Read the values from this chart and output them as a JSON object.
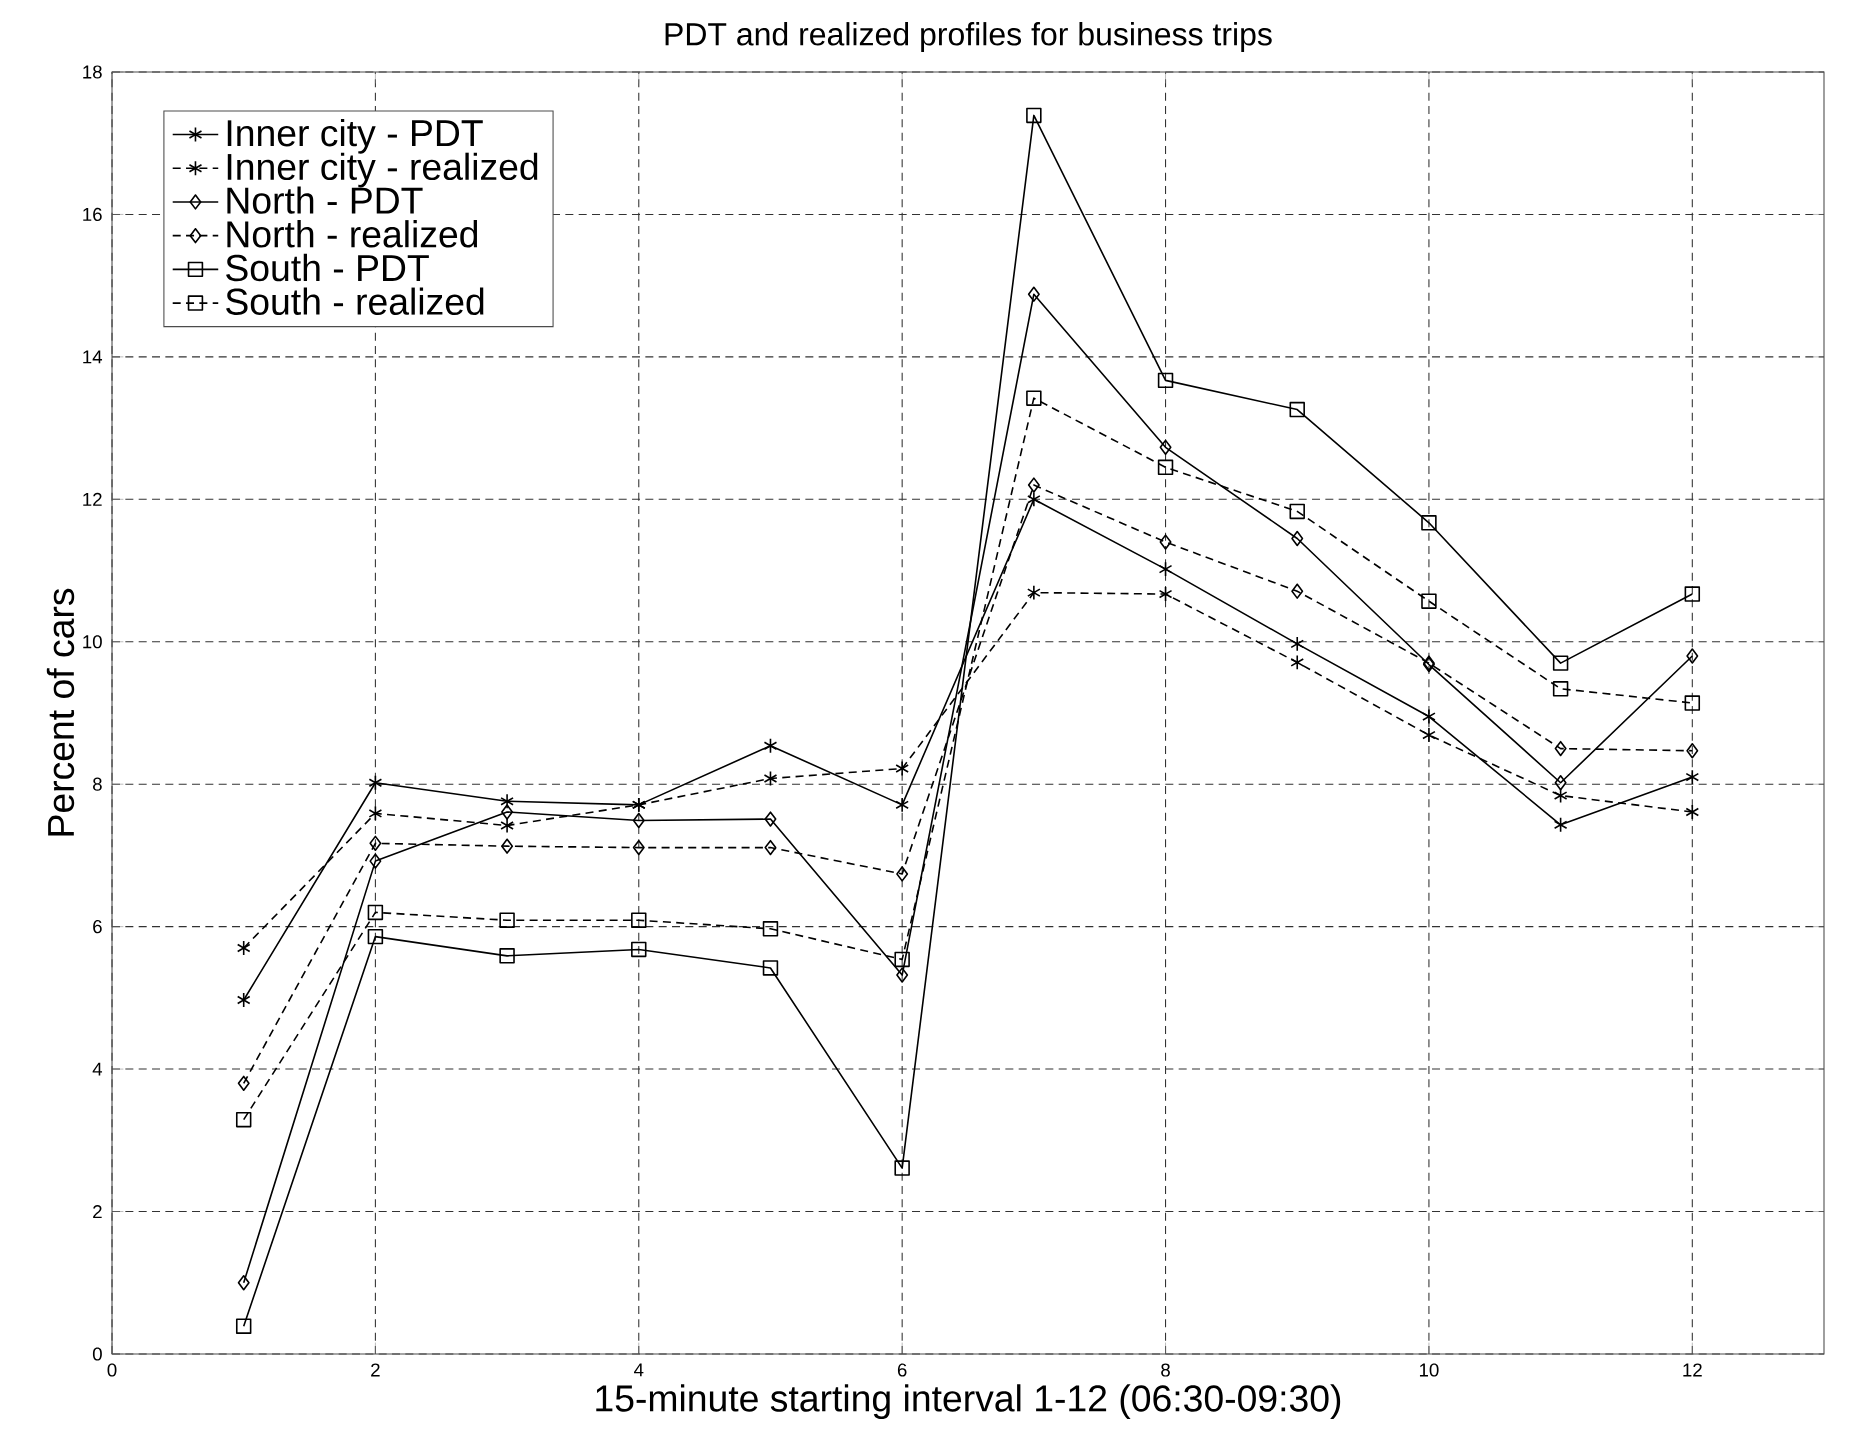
{
  "chart_data": {
    "type": "line",
    "title": "PDT and realized profiles for business trips",
    "xlabel": "15-minute starting interval 1-12 (06:30-09:30)",
    "ylabel": "Percent of cars",
    "x": [
      1,
      2,
      3,
      4,
      5,
      6,
      7,
      8,
      9,
      10,
      11,
      12
    ],
    "xlim": [
      0,
      13
    ],
    "xticks": [
      0,
      2,
      4,
      6,
      8,
      10,
      12
    ],
    "ylim": [
      0,
      18
    ],
    "yticks": [
      0,
      2,
      4,
      6,
      8,
      10,
      12,
      14,
      16,
      18
    ],
    "grid": true,
    "legend": "top left",
    "series": [
      {
        "name": "Inner city - PDT",
        "color": "#000000",
        "marker": "cross",
        "line_style": "solid",
        "values": [
          4.97,
          8.02,
          7.76,
          7.71,
          8.54,
          7.71,
          12.0,
          11.02,
          9.97,
          8.95,
          7.43,
          8.1
        ]
      },
      {
        "name": "Inner city - realized",
        "color": "#000000",
        "marker": "cross",
        "line_style": "dotted",
        "values": [
          5.7,
          7.59,
          7.42,
          7.71,
          8.08,
          8.22,
          10.69,
          10.67,
          9.71,
          8.69,
          7.84,
          7.61
        ]
      },
      {
        "name": "North - PDT",
        "color": "#000000",
        "marker": "diamond",
        "line_style": "solid",
        "values": [
          1.0,
          6.92,
          7.61,
          7.49,
          7.51,
          5.32,
          14.88,
          12.73,
          11.45,
          9.68,
          8.02,
          9.8
        ]
      },
      {
        "name": "North - realized",
        "color": "#000000",
        "marker": "diamond",
        "line_style": "dotted",
        "values": [
          3.8,
          7.17,
          7.13,
          7.11,
          7.11,
          6.74,
          12.2,
          11.4,
          10.71,
          9.7,
          8.5,
          8.47
        ]
      },
      {
        "name": "South - PDT",
        "color": "#000000",
        "marker": "square",
        "line_style": "solid",
        "values": [
          0.39,
          5.86,
          5.59,
          5.68,
          5.42,
          2.61,
          17.39,
          13.67,
          13.26,
          11.67,
          9.7,
          10.67
        ]
      },
      {
        "name": "South - realized",
        "color": "#000000",
        "marker": "square",
        "line_style": "dotted",
        "values": [
          3.29,
          6.2,
          6.09,
          6.09,
          5.97,
          5.54,
          13.42,
          12.45,
          11.83,
          10.57,
          9.34,
          9.14
        ]
      }
    ]
  }
}
